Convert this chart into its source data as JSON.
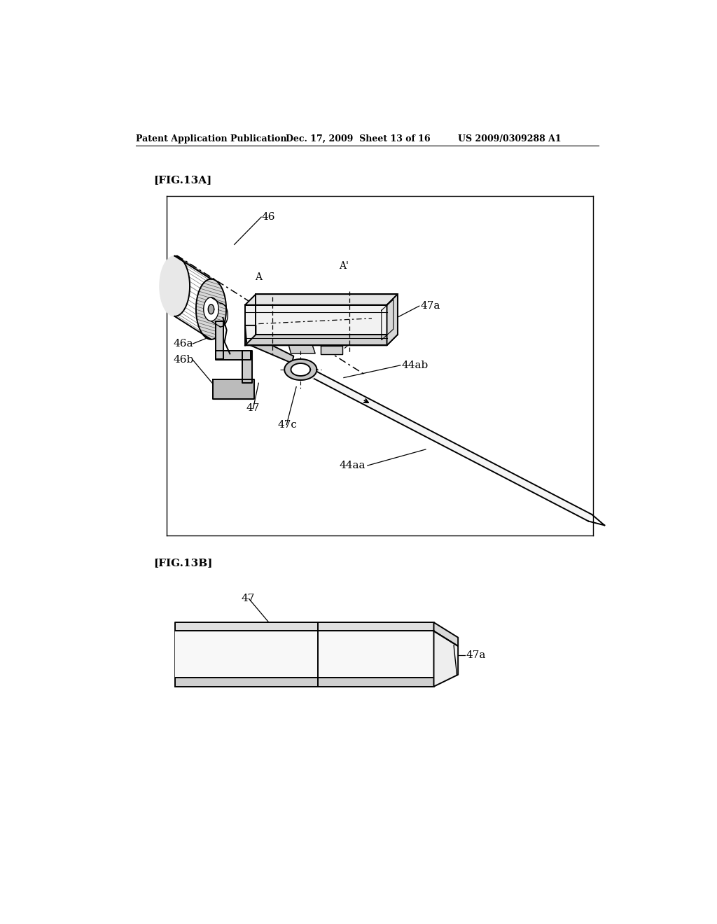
{
  "bg_color": "#ffffff",
  "header_left": "Patent Application Publication",
  "header_mid": "Dec. 17, 2009  Sheet 13 of 16",
  "header_right": "US 2009/0309288 A1",
  "fig13a_label": "[FIG.13A]",
  "fig13b_label": "[FIG.13B]"
}
